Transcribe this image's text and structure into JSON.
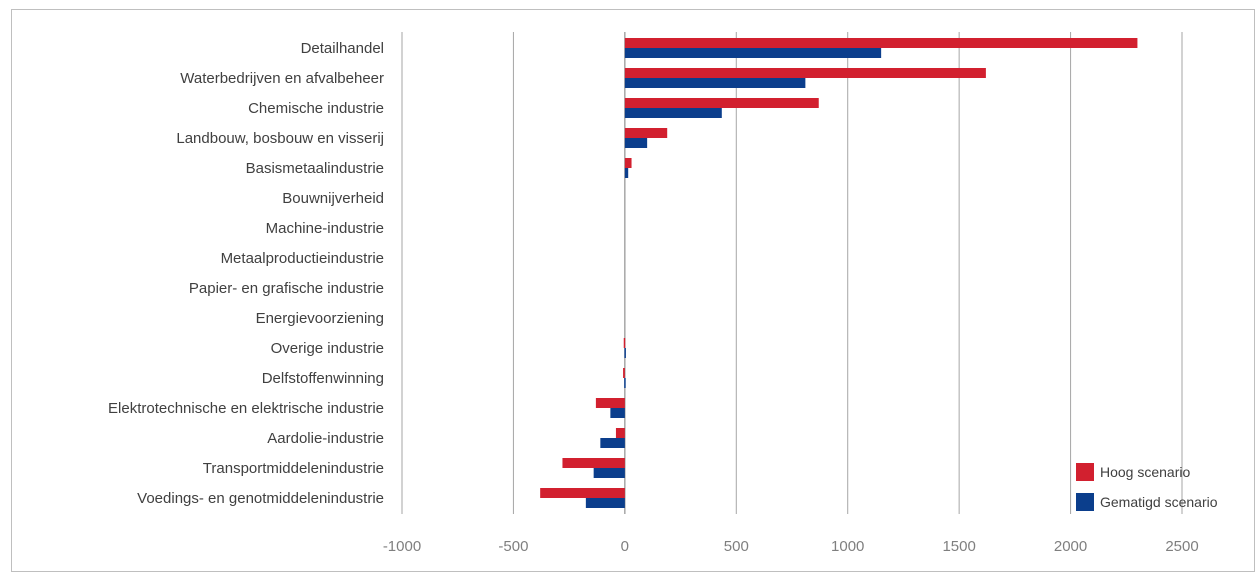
{
  "chart_data": {
    "type": "bar",
    "orientation": "horizontal",
    "categories": [
      "Detailhandel",
      "Waterbedrijven en afvalbeheer",
      "Chemische industrie",
      "Landbouw, bosbouw en visserij",
      "Basismetaalindustrie",
      "Bouwnijverheid",
      "Machine-industrie",
      "Metaalproductieindustrie",
      "Papier- en grafische industrie",
      "Energievoorziening",
      "Overige industrie",
      "Delfstoffenwinning",
      "Elektrotechnische en elektrische industrie",
      "Aardolie-industrie",
      "Transportmiddelenindustrie",
      "Voedings- en genotmiddelenindustrie"
    ],
    "series": [
      {
        "name": "Hoog scenario",
        "color": "#d2202f",
        "values": [
          2300,
          1620,
          870,
          190,
          30,
          0,
          0,
          0,
          0,
          0,
          -5,
          -8,
          -130,
          -40,
          -280,
          -380
        ]
      },
      {
        "name": "Gematigd scenario",
        "color": "#0b3e8c",
        "values": [
          1150,
          810,
          435,
          100,
          15,
          0,
          0,
          0,
          0,
          0,
          -2,
          -3,
          -65,
          -110,
          -140,
          -175
        ]
      }
    ],
    "x_ticks": [
      "-1000",
      "-500",
      "0",
      "500",
      "1000",
      "1500",
      "2000",
      "2500"
    ],
    "xlim": [
      -1000,
      2500
    ],
    "grid": "vertical",
    "legend_position": "bottom-right"
  }
}
